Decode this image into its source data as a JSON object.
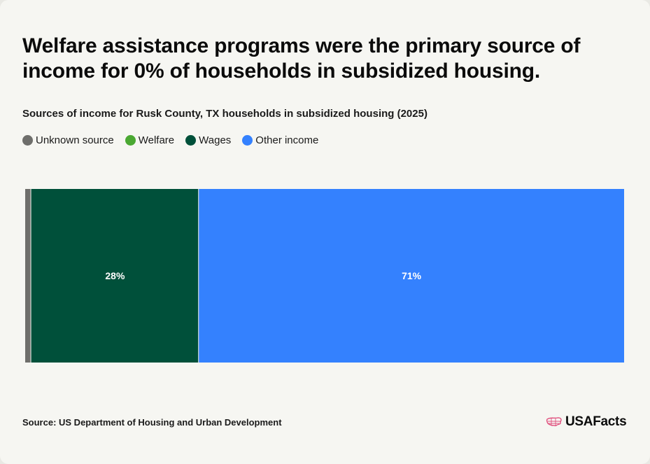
{
  "header": {
    "title": "Welfare assistance programs were the primary source of income for 0% of households in subsidized housing.",
    "subtitle": "Sources of income for Rusk County, TX households in subsidized housing (2025)"
  },
  "legend": [
    {
      "label": "Unknown source",
      "color": "#6e6e6b"
    },
    {
      "label": "Welfare",
      "color": "#4aa832"
    },
    {
      "label": "Wages",
      "color": "#00503a"
    },
    {
      "label": "Other income",
      "color": "#3481fe"
    }
  ],
  "chart_data": {
    "type": "bar",
    "orientation": "horizontal-stacked-100",
    "categories": [
      "Sources of income"
    ],
    "series": [
      {
        "name": "Unknown source",
        "values": [
          1
        ],
        "color": "#6e6e6b",
        "label": ""
      },
      {
        "name": "Welfare",
        "values": [
          0
        ],
        "color": "#4aa832",
        "label": ""
      },
      {
        "name": "Wages",
        "values": [
          28
        ],
        "color": "#00503a",
        "label": "28%"
      },
      {
        "name": "Other income",
        "values": [
          71
        ],
        "color": "#3481fe",
        "label": "71%"
      }
    ],
    "xlim": [
      0,
      100
    ],
    "grid": false,
    "legend_placement": "top-left"
  },
  "footer": {
    "source": "Source: US Department of Housing and Urban Development",
    "brand": "USAFacts",
    "brand_icon": "us-map-icon"
  }
}
